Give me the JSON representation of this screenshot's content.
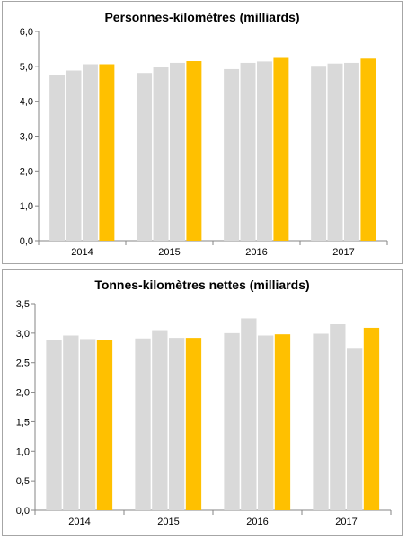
{
  "colors": {
    "grey_bar": "#d9d9d9",
    "highlight_bar": "#ffc000",
    "axis": "#868686"
  },
  "chart_data": [
    {
      "type": "bar",
      "title": "Personnes-kilomètres  (milliards)",
      "categories": [
        "2014",
        "2015",
        "2016",
        "2017"
      ],
      "bars_per_category": 4,
      "highlight_index": 3,
      "values": [
        [
          4.76,
          4.88,
          5.06,
          5.06
        ],
        [
          4.81,
          4.97,
          5.1,
          5.15
        ],
        [
          4.92,
          5.1,
          5.14,
          5.24
        ],
        [
          4.99,
          5.08,
          5.1,
          5.22
        ]
      ],
      "ylim": [
        0,
        6
      ],
      "yticks": [
        "0,0",
        "1,0",
        "2,0",
        "3,0",
        "4,0",
        "5,0",
        "6,0"
      ],
      "ytick_values": [
        0,
        1,
        2,
        3,
        4,
        5,
        6
      ],
      "grid": false
    },
    {
      "type": "bar",
      "title": "Tonnes-kilomètres  nettes  (milliards)",
      "categories": [
        "2014",
        "2015",
        "2016",
        "2017"
      ],
      "bars_per_category": 4,
      "highlight_index": 3,
      "values": [
        [
          2.88,
          2.96,
          2.9,
          2.89
        ],
        [
          2.91,
          3.05,
          2.92,
          2.92
        ],
        [
          3.0,
          3.25,
          2.96,
          2.98
        ],
        [
          2.99,
          3.15,
          2.75,
          3.09
        ]
      ],
      "ylim": [
        0,
        3.5
      ],
      "yticks": [
        "0,0",
        "0,5",
        "1,0",
        "1,5",
        "2,0",
        "2,5",
        "3,0",
        "3,5"
      ],
      "ytick_values": [
        0,
        0.5,
        1.0,
        1.5,
        2.0,
        2.5,
        3.0,
        3.5
      ],
      "grid": false
    }
  ]
}
